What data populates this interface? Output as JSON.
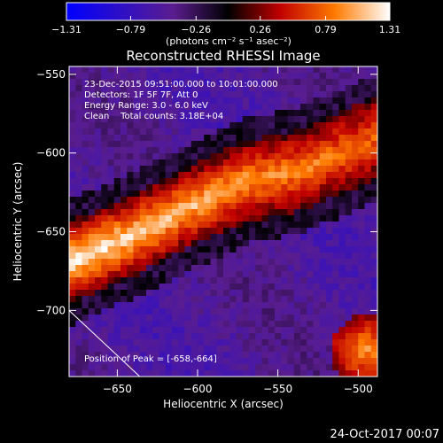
{
  "chart_data": {
    "type": "heatmap",
    "title": "Reconstructed RHESSI Image",
    "xlabel": "Heliocentric X (arcsec)",
    "ylabel": "Heliocentric Y (arcsec)",
    "xlim": [
      -680,
      -488
    ],
    "ylim": [
      -742,
      -545
    ],
    "x_ticks": [
      -650,
      -600,
      -550,
      -500
    ],
    "y_ticks": [
      -550,
      -600,
      -650,
      -700
    ],
    "x_tick_labels": [
      "−650",
      "−600",
      "−550",
      "−500"
    ],
    "y_tick_labels": [
      "−550",
      "−600",
      "−650",
      "−700"
    ],
    "grid": false,
    "colorbar": {
      "label": "(photons cm⁻² s⁻¹ asec⁻²)",
      "range": [
        -1.31,
        1.31
      ],
      "ticks": [
        -1.31,
        -0.79,
        -0.26,
        0.26,
        0.79,
        1.31
      ],
      "tick_labels": [
        "−1.31",
        "−0.79",
        "−0.26",
        "0.26",
        "0.79",
        "1.31"
      ],
      "placement": "top"
    },
    "annotations": [
      "23-Dec-2015 09:51:00.000 to 10:01:00.000",
      "Detectors: 1F 5F 7F, Att 0",
      "Energy Range: 3.0 - 6.0 keV",
      "Clean    Total counts: 3.18E+04",
      "Position of Peak = [-658,-664]"
    ],
    "peak": {
      "x": -658,
      "y": -664
    },
    "blob_path": [
      [
        -680,
        -670
      ],
      [
        -640,
        -652
      ],
      [
        -600,
        -632
      ],
      [
        -570,
        -618
      ],
      [
        -540,
        -612
      ],
      [
        -505,
        -598
      ],
      [
        -488,
        -590
      ]
    ],
    "blob_half_width": 26,
    "limb_line": [
      [
        -680,
        -700
      ],
      [
        -636,
        -742
      ]
    ],
    "secondary_source": {
      "x": -495,
      "y": -725
    },
    "grid_cells": [
      48,
      50
    ]
  },
  "footer": {
    "date": "24-Oct-2017 00:07"
  }
}
